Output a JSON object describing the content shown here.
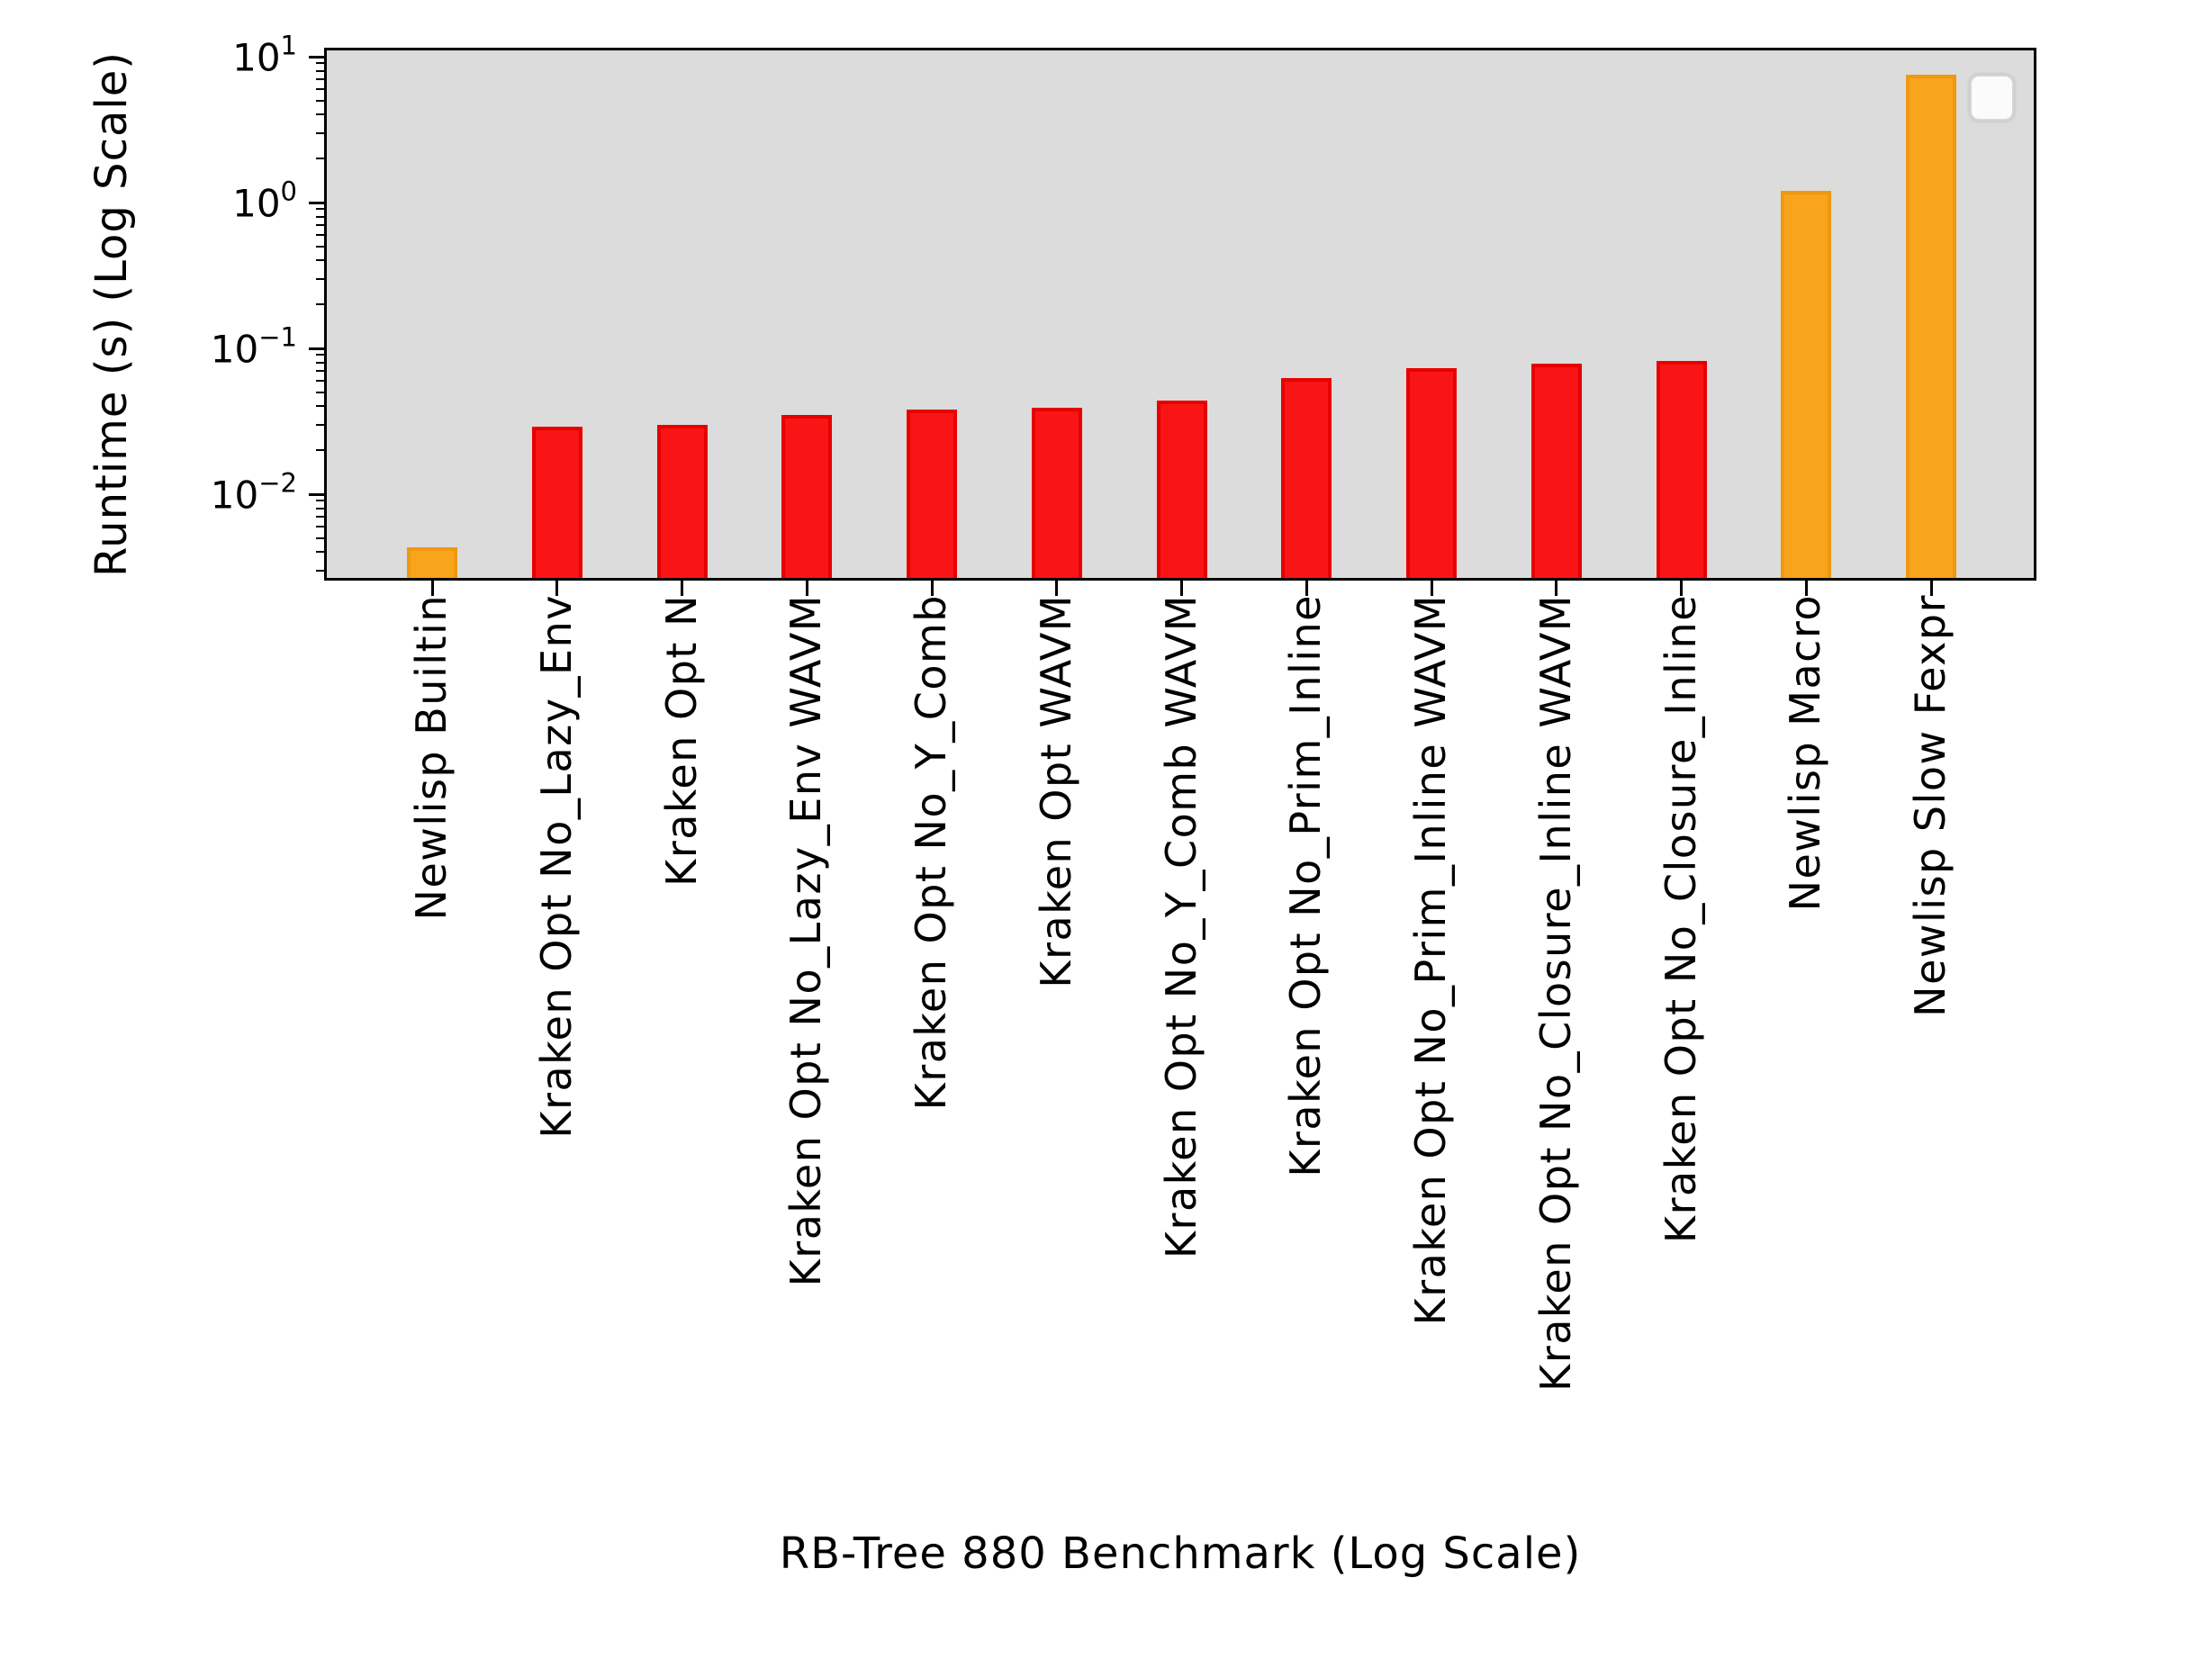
{
  "figure": {
    "ylabel": "Runtime (s) (Log Scale)",
    "xlabel": "RB-Tree 880 Benchmark (Log Scale)"
  },
  "chart_data": {
    "type": "bar",
    "title": "",
    "xlabel": "RB-Tree 880 Benchmark (Log Scale)",
    "ylabel": "Runtime (s) (Log Scale)",
    "yscale": "log",
    "ylim": [
      0.0027,
      11
    ],
    "grid": false,
    "plot_background": "#dcdcdc",
    "legend": {
      "position": "upper right",
      "entries": [],
      "note": "empty rounded legend box"
    },
    "y_ticks": [
      {
        "mantissa": "10",
        "exponent": "1",
        "value": 10
      },
      {
        "mantissa": "10",
        "exponent": "0",
        "value": 1
      },
      {
        "mantissa": "10",
        "exponent": "−1",
        "value": 0.1
      },
      {
        "mantissa": "10",
        "exponent": "−2",
        "value": 0.01
      }
    ],
    "categories": [
      "Newlisp Builtin",
      "Kraken Opt No_Lazy_Env",
      "Kraken Opt N",
      "Kraken Opt No_Lazy_Env WAVM",
      "Kraken Opt No_Y_Comb",
      "Kraken Opt WAVM",
      "Kraken Opt No_Y_Comb WAVM",
      "Kraken Opt No_Prim_Inline",
      "Kraken Opt No_Prim_Inline WAVM",
      "Kraken Opt No_Closure_Inline WAVM",
      "Kraken Opt No_Closure_Inline",
      "Newlisp Macro",
      "Newlisp Slow Fexpr"
    ],
    "values": [
      0.0043,
      0.029,
      0.03,
      0.035,
      0.038,
      0.039,
      0.044,
      0.063,
      0.073,
      0.078,
      0.082,
      1.2,
      7.5
    ],
    "bar_color_keys": [
      "orange",
      "red",
      "red",
      "red",
      "red",
      "red",
      "red",
      "red",
      "red",
      "red",
      "red",
      "orange",
      "orange"
    ],
    "colors": {
      "red": {
        "fill": "#f91515",
        "edge": "#e80000"
      },
      "orange": {
        "fill": "#f9a51b",
        "edge": "#f0980f"
      },
      "plot_bg": "#dcdcdc",
      "spine": "#000000"
    }
  }
}
